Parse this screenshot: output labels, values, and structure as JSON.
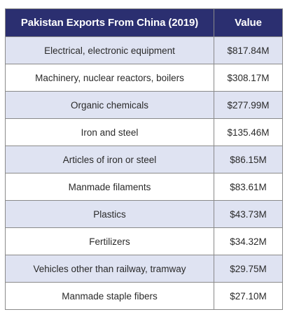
{
  "chart_data": {
    "type": "table",
    "title": "Pakistan Exports From China (2019)",
    "columns": [
      "Pakistan Exports From China (2019)",
      "Value"
    ],
    "rows": [
      {
        "category": "Electrical, electronic equipment",
        "value": "$817.84M"
      },
      {
        "category": "Machinery, nuclear reactors, boilers",
        "value": "$308.17M"
      },
      {
        "category": "Organic chemicals",
        "value": "$277.99M"
      },
      {
        "category": "Iron and steel",
        "value": "$135.46M"
      },
      {
        "category": "Articles of iron or steel",
        "value": "$86.15M"
      },
      {
        "category": "Manmade filaments",
        "value": "$83.61M"
      },
      {
        "category": "Plastics",
        "value": "$43.73M"
      },
      {
        "category": "Fertilizers",
        "value": "$34.32M"
      },
      {
        "category": "Vehicles other than railway, tramway",
        "value": "$29.75M"
      },
      {
        "category": "Manmade staple fibers",
        "value": "$27.10M"
      }
    ]
  },
  "colors": {
    "header_bg": "#2b2f70",
    "header_text": "#ffffff",
    "row_alt_bg": "#dfe3f2",
    "row_bg": "#ffffff",
    "border": "#8a8a8a"
  }
}
